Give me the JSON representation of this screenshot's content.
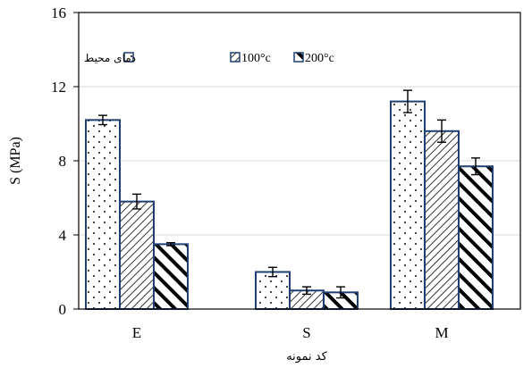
{
  "chart_data": {
    "type": "bar",
    "title": "",
    "xlabel": "کد نمونه",
    "ylabel": "S (MPa)",
    "ylim": [
      0,
      16
    ],
    "yticks": [
      "0",
      "4",
      "8",
      "12",
      "16"
    ],
    "categories": [
      "E",
      "S",
      "M"
    ],
    "grid": true,
    "legend_position": "top-left",
    "series": [
      {
        "name": "دمای محیط",
        "values": [
          10.2,
          2.0,
          11.2
        ],
        "errors": [
          0.25,
          0.25,
          0.6
        ],
        "pattern": "dots"
      },
      {
        "name": "100°c",
        "values": [
          5.8,
          1.0,
          9.6
        ],
        "errors": [
          0.4,
          0.2,
          0.6
        ],
        "pattern": "thin-diagonal"
      },
      {
        "name": "200°c",
        "values": [
          3.5,
          0.9,
          7.7
        ],
        "errors": [
          0.08,
          0.3,
          0.45
        ],
        "pattern": "thick-diagonal"
      }
    ],
    "colors": {
      "bar_border": "#1f3f73",
      "grid": "#d9d9d9",
      "axis": "#000000"
    }
  }
}
